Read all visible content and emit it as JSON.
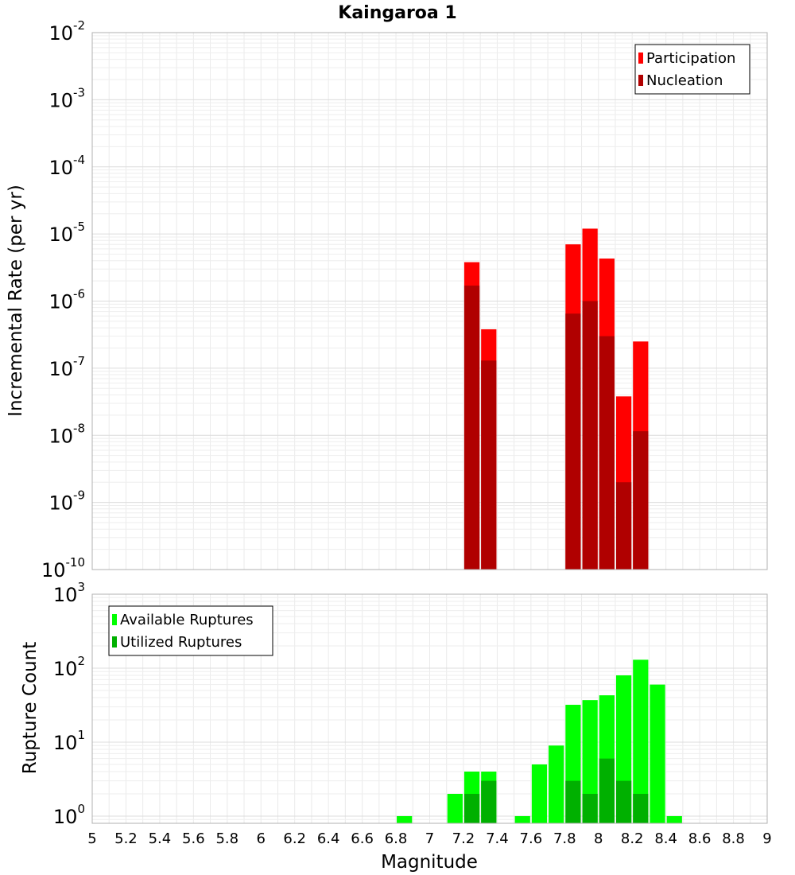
{
  "chart_data": [
    {
      "type": "bar",
      "title": "Kaingaroa 1",
      "xlabel": "",
      "ylabel": "Incremental Rate (per yr)",
      "yscale": "log",
      "ylim": [
        1e-10,
        0.01
      ],
      "xlim": [
        5,
        9
      ],
      "grid": true,
      "legend_position": "top-right",
      "series": [
        {
          "name": "Participation",
          "color": "#ff0000",
          "points": [
            {
              "x": 7.25,
              "y": 3.8e-06
            },
            {
              "x": 7.35,
              "y": 3.8e-07
            },
            {
              "x": 7.85,
              "y": 7e-06
            },
            {
              "x": 7.95,
              "y": 1.2e-05
            },
            {
              "x": 8.05,
              "y": 4.3e-06
            },
            {
              "x": 8.15,
              "y": 3.8e-08
            },
            {
              "x": 8.25,
              "y": 2.5e-07
            }
          ]
        },
        {
          "name": "Nucleation",
          "color": "#b00000",
          "points": [
            {
              "x": 7.25,
              "y": 1.7e-06
            },
            {
              "x": 7.35,
              "y": 1.3e-07
            },
            {
              "x": 7.85,
              "y": 6.5e-07
            },
            {
              "x": 7.95,
              "y": 1e-06
            },
            {
              "x": 8.05,
              "y": 3e-07
            },
            {
              "x": 8.15,
              "y": 2e-09
            },
            {
              "x": 8.25,
              "y": 1.15e-08
            }
          ]
        }
      ]
    },
    {
      "type": "bar",
      "title": "",
      "xlabel": "Magnitude",
      "ylabel": "Rupture Count",
      "yscale": "log",
      "ylim": [
        0.8,
        1000
      ],
      "xlim": [
        5,
        9
      ],
      "xticks": [
        "5",
        "5.2",
        "5.4",
        "5.6",
        "5.8",
        "6",
        "6.2",
        "6.4",
        "6.6",
        "6.8",
        "7",
        "7.2",
        "7.4",
        "7.6",
        "7.8",
        "8",
        "8.2",
        "8.4",
        "8.6",
        "8.8",
        "9"
      ],
      "grid": true,
      "legend_position": "top-left",
      "series": [
        {
          "name": "Available Ruptures",
          "color": "#00ff00",
          "points": [
            {
              "x": 6.85,
              "y": 1
            },
            {
              "x": 7.15,
              "y": 2
            },
            {
              "x": 7.25,
              "y": 4
            },
            {
              "x": 7.35,
              "y": 4
            },
            {
              "x": 7.55,
              "y": 1
            },
            {
              "x": 7.65,
              "y": 5
            },
            {
              "x": 7.75,
              "y": 9
            },
            {
              "x": 7.85,
              "y": 32
            },
            {
              "x": 7.95,
              "y": 37
            },
            {
              "x": 8.05,
              "y": 43
            },
            {
              "x": 8.15,
              "y": 80
            },
            {
              "x": 8.25,
              "y": 130
            },
            {
              "x": 8.35,
              "y": 60
            },
            {
              "x": 8.45,
              "y": 1
            }
          ]
        },
        {
          "name": "Utilized Ruptures",
          "color": "#00b000",
          "points": [
            {
              "x": 7.25,
              "y": 2
            },
            {
              "x": 7.35,
              "y": 3
            },
            {
              "x": 7.85,
              "y": 3
            },
            {
              "x": 7.95,
              "y": 2
            },
            {
              "x": 8.05,
              "y": 6
            },
            {
              "x": 8.15,
              "y": 3
            },
            {
              "x": 8.25,
              "y": 2
            }
          ]
        }
      ]
    }
  ]
}
